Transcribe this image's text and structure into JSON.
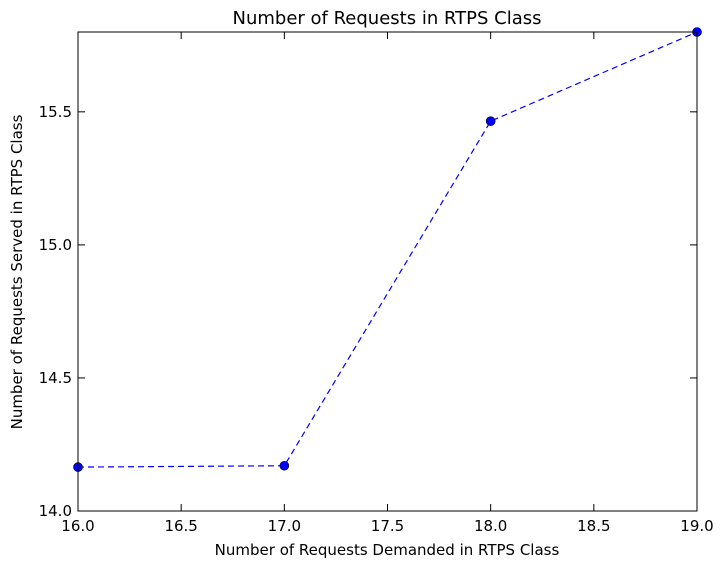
{
  "chart_data": {
    "type": "line",
    "title": "Number of Requests in RTPS Class",
    "xlabel": "Number of Requests Demanded in RTPS Class",
    "ylabel": "Number of Requests Served in RTPS Class",
    "xlim": [
      16.0,
      19.0
    ],
    "ylim": [
      14.0,
      15.8
    ],
    "xticks": [
      "16.0",
      "16.5",
      "17.0",
      "17.5",
      "18.0",
      "18.5",
      "19.0"
    ],
    "yticks": [
      "14.0",
      "14.5",
      "15.0",
      "15.5"
    ],
    "grid": false,
    "series": [
      {
        "x": [
          16.0,
          17.0,
          18.0,
          19.0
        ],
        "y": [
          14.165,
          14.17,
          15.465,
          15.8
        ],
        "color": "#0000ff",
        "line_style": "dashed",
        "marker": "circle"
      }
    ]
  }
}
